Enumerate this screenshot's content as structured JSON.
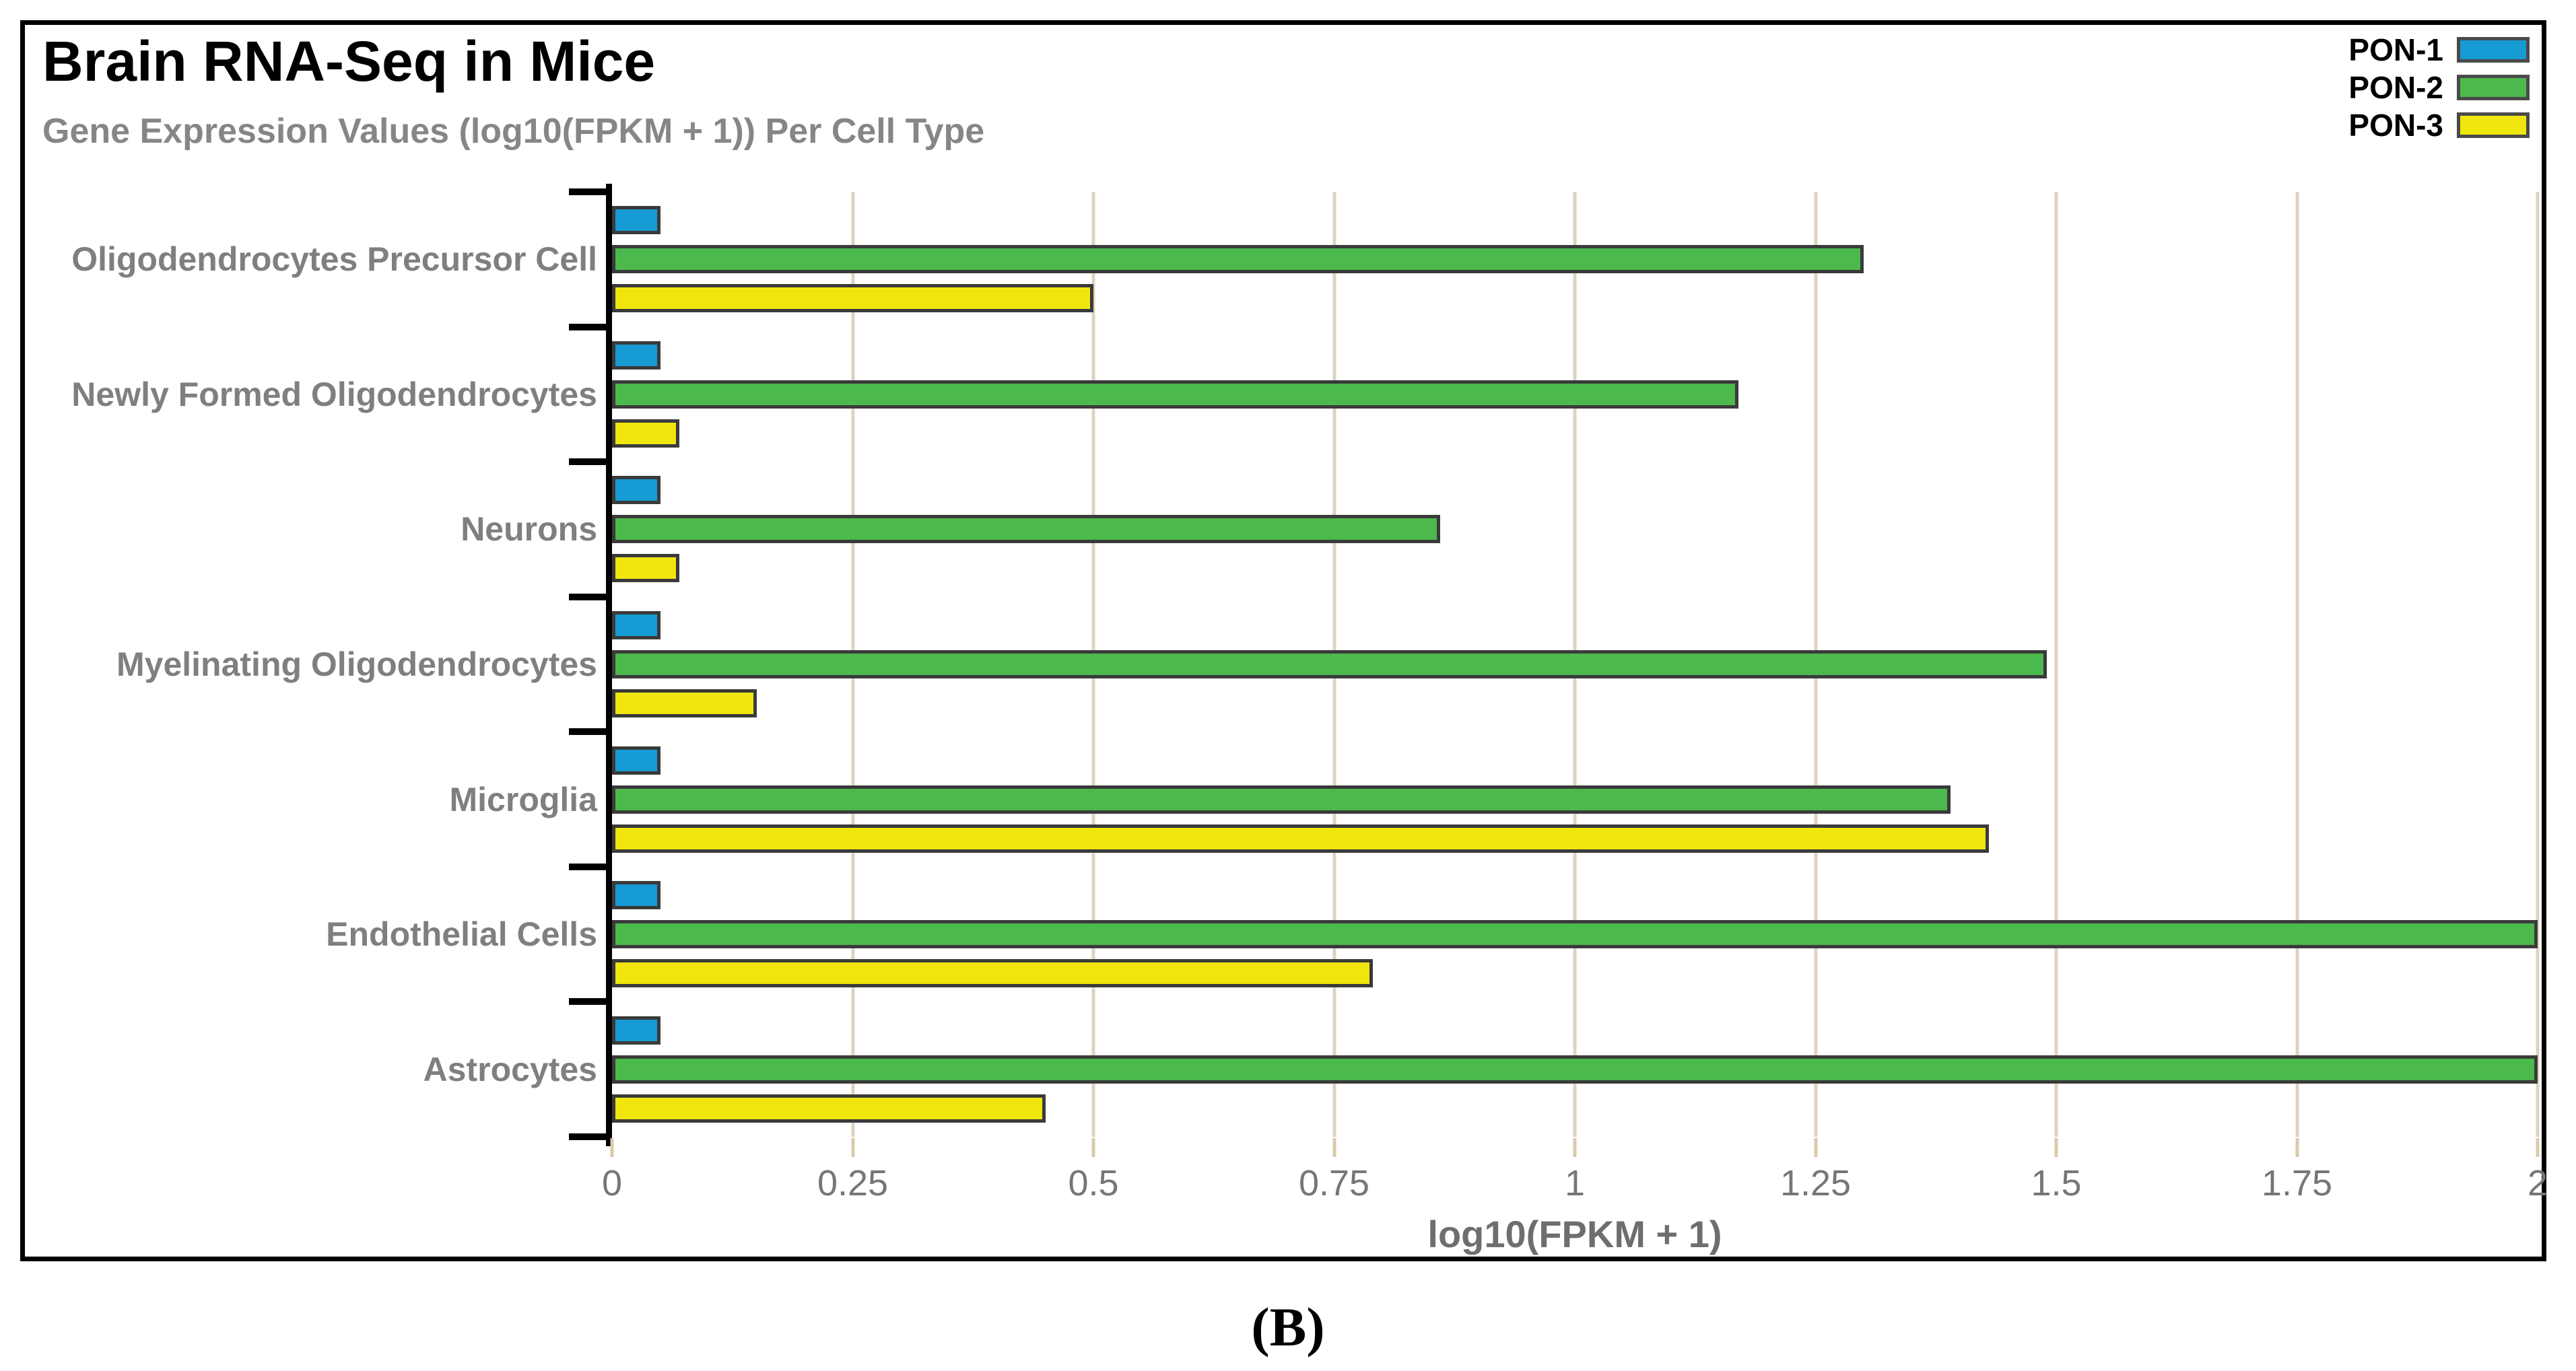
{
  "figure": {
    "panel_label": "(B)"
  },
  "styles": {
    "grid_color": "#ddd3c0",
    "axis_tick_color": "#d9cbab",
    "category_label_color": "#7f7f7f",
    "tick_label_color": "#767676",
    "bar_border_color": "#3a3a3a",
    "legend_swatch_border": "#4a4a4a"
  },
  "chart_data": {
    "type": "bar",
    "orientation": "horizontal",
    "title": "Brain RNA-Seq in Mice",
    "subtitle": "Gene Expression Values (log10(FPKM + 1)) Per Cell Type",
    "xlabel": "log10(FPKM + 1)",
    "xlim": [
      0,
      2
    ],
    "xticks": [
      0,
      0.25,
      0.5,
      0.75,
      1,
      1.25,
      1.5,
      1.75,
      2
    ],
    "xtick_labels": [
      "0",
      "0.25",
      "0.5",
      "0.75",
      "1",
      "1.25",
      "1.5",
      "1.75",
      "2"
    ],
    "grid": true,
    "legend_position": "top-right",
    "categories": [
      "Oligodendrocytes Precursor Cell",
      "Newly Formed Oligodendrocytes",
      "Neurons",
      "Myelinating Oligodendrocytes",
      "Microglia",
      "Endothelial Cells",
      "Astrocytes"
    ],
    "series": [
      {
        "name": "PON-1",
        "color": "#169bd5",
        "values": [
          0.05,
          0.05,
          0.05,
          0.05,
          0.05,
          0.05,
          0.05
        ]
      },
      {
        "name": "PON-2",
        "color": "#4cb94c",
        "values": [
          1.3,
          1.17,
          0.86,
          1.49,
          1.39,
          2.0,
          2.0
        ]
      },
      {
        "name": "PON-3",
        "color": "#f0e60e",
        "values": [
          0.5,
          0.07,
          0.07,
          0.15,
          1.43,
          0.79,
          0.45
        ]
      }
    ]
  }
}
